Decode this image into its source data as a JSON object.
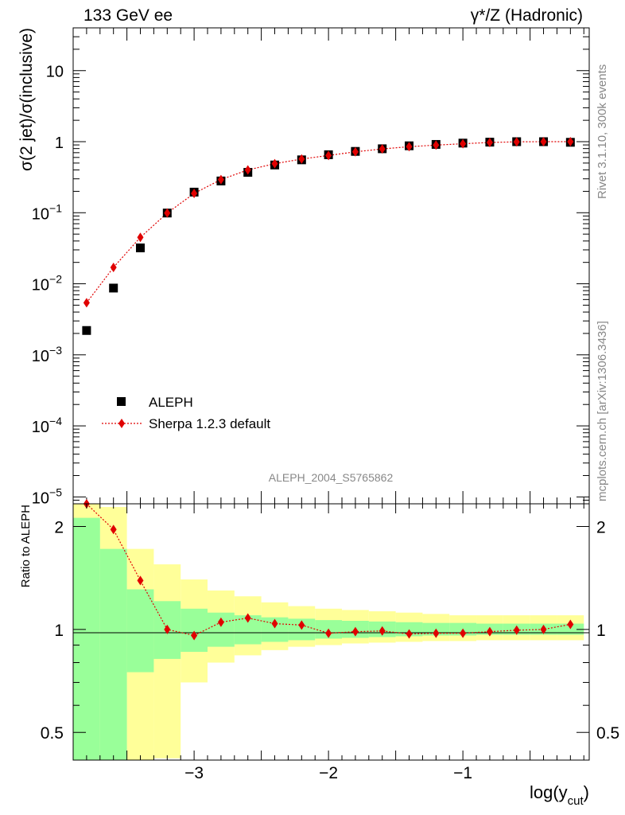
{
  "header": {
    "left": "133 GeV ee",
    "right": "γ*/Z (Hadronic)"
  },
  "side": {
    "rivet": "Rivet 3.1.10,  300k events",
    "mcplots": "mcplots.cern.ch [arXiv:1306.3436]"
  },
  "watermark": "ALEPH_2004_S5765862",
  "chart_data": [
    {
      "type": "scatter",
      "ylabel": "σ(2 jet)/σ(inclusive)",
      "yscale": "log",
      "ylim": [
        8e-06,
        40
      ],
      "xlim": [
        -3.9,
        -0.06
      ],
      "ytick_labels": [
        {
          "v": 10,
          "text": "10"
        },
        {
          "v": 1,
          "text": "1"
        },
        {
          "v": 0.1,
          "text": "10",
          "sup": "−1"
        },
        {
          "v": 0.01,
          "text": "10",
          "sup": "−2"
        },
        {
          "v": 0.001,
          "text": "10",
          "sup": "−3"
        },
        {
          "v": 0.0001,
          "text": "10",
          "sup": "−4"
        },
        {
          "v": 1e-05,
          "text": "10",
          "sup": "−5"
        }
      ],
      "legend": {
        "position": "bottom-left",
        "entries": [
          "ALEPH",
          "Sherpa 1.2.3 default"
        ]
      },
      "series": [
        {
          "name": "ALEPH",
          "marker": "square",
          "color": "#000000",
          "x": [
            -3.8,
            -3.6,
            -3.4,
            -3.2,
            -3.0,
            -2.8,
            -2.6,
            -2.4,
            -2.2,
            -2.0,
            -1.8,
            -1.6,
            -1.4,
            -1.2,
            -1.0,
            -0.8,
            -0.6,
            -0.4,
            -0.2
          ],
          "y": [
            0.0022,
            0.0087,
            0.032,
            0.099,
            0.195,
            0.28,
            0.37,
            0.47,
            0.555,
            0.655,
            0.73,
            0.795,
            0.875,
            0.915,
            0.955,
            0.985,
            1.0,
            1.0,
            0.98
          ]
        },
        {
          "name": "Sherpa 1.2.3 default",
          "marker": "diamond",
          "color": "#e00000",
          "line": "dotted",
          "x": [
            -3.8,
            -3.6,
            -3.4,
            -3.2,
            -3.0,
            -2.8,
            -2.6,
            -2.4,
            -2.2,
            -2.0,
            -1.8,
            -1.6,
            -1.4,
            -1.2,
            -1.0,
            -0.8,
            -0.6,
            -0.4,
            -0.2
          ],
          "y": [
            0.0054,
            0.017,
            0.045,
            0.099,
            0.187,
            0.293,
            0.4,
            0.49,
            0.57,
            0.64,
            0.72,
            0.79,
            0.85,
            0.895,
            0.935,
            0.975,
            0.995,
            1.0,
            1.0
          ]
        }
      ]
    },
    {
      "type": "line",
      "ylabel": "Ratio to ALEPH",
      "xlabel": "log(y_cut)",
      "xlabel_main": "log(y",
      "xlabel_sub": "cut",
      "xlabel_close": ")",
      "yscale": "log",
      "ylim": [
        0.415,
        2.33
      ],
      "xlim": [
        -3.9,
        -0.06
      ],
      "ytick_labels": [
        {
          "v": 2,
          "text": "2"
        },
        {
          "v": 1,
          "text": "1"
        },
        {
          "v": 0.5,
          "text": "0.5"
        }
      ],
      "xtick_labels": [
        {
          "v": -3,
          "text": "−3"
        },
        {
          "v": -2,
          "text": "−2"
        },
        {
          "v": -1,
          "text": "−1"
        }
      ],
      "bin_edges": [
        -3.9,
        -3.7,
        -3.5,
        -3.3,
        -3.1,
        -2.9,
        -2.7,
        -2.5,
        -2.3,
        -2.1,
        -1.9,
        -1.7,
        -1.5,
        -1.3,
        -1.1,
        -0.9,
        -0.7,
        -0.5,
        -0.3,
        -0.1
      ],
      "band_inner": {
        "color": "#99ff99",
        "lo": [
          0.415,
          0.415,
          0.75,
          0.82,
          0.86,
          0.89,
          0.905,
          0.92,
          0.93,
          0.94,
          0.945,
          0.95,
          0.955,
          0.96,
          0.96,
          0.965,
          0.965,
          0.965,
          0.965
        ],
        "hi": [
          2.12,
          1.72,
          1.31,
          1.21,
          1.15,
          1.12,
          1.1,
          1.085,
          1.075,
          1.065,
          1.06,
          1.055,
          1.05,
          1.045,
          1.045,
          1.04,
          1.04,
          1.04,
          1.04
        ]
      },
      "band_outer": {
        "color": "#ffff99",
        "lo": [
          0.415,
          0.415,
          0.415,
          0.42,
          0.7,
          0.8,
          0.84,
          0.87,
          0.89,
          0.9,
          0.91,
          0.915,
          0.92,
          0.925,
          0.925,
          0.93,
          0.93,
          0.93,
          0.93
        ],
        "hi": [
          2.33,
          2.28,
          1.72,
          1.55,
          1.4,
          1.3,
          1.25,
          1.2,
          1.17,
          1.15,
          1.14,
          1.13,
          1.12,
          1.11,
          1.1,
          1.1,
          1.1,
          1.1,
          1.1
        ]
      },
      "series": [
        {
          "name": "Sherpa 1.2.3 default",
          "marker": "diamond",
          "color": "#e00000",
          "line": "dotted",
          "x": [
            -3.8,
            -3.6,
            -3.4,
            -3.2,
            -3.0,
            -2.8,
            -2.6,
            -2.4,
            -2.2,
            -2.0,
            -1.8,
            -1.6,
            -1.4,
            -1.2,
            -1.0,
            -0.8,
            -0.6,
            -0.4,
            -0.2
          ],
          "y": [
            2.33,
            1.96,
            1.39,
            1.0,
            0.96,
            1.05,
            1.08,
            1.04,
            1.03,
            0.975,
            0.985,
            0.99,
            0.97,
            0.975,
            0.975,
            0.985,
            0.995,
            1.0,
            1.035
          ]
        }
      ]
    }
  ]
}
